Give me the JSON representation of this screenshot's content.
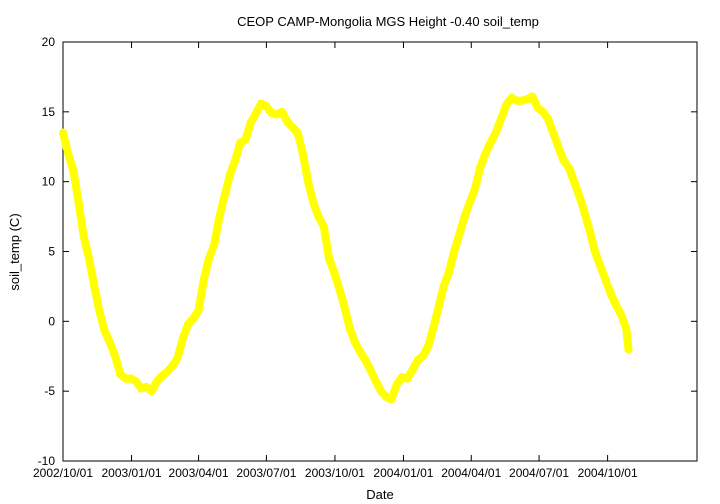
{
  "chart_data": {
    "type": "line",
    "title": "CEOP  CAMP-Mongolia MGS Height -0.40 soil_temp",
    "xlabel": "Date",
    "ylabel": "soil_temp (C)",
    "ylim": [
      -10,
      20
    ],
    "yticks": [
      -10,
      -5,
      0,
      5,
      10,
      15,
      20
    ],
    "xlim": [
      "2002-10-01",
      "2005-01-29"
    ],
    "xticks": [
      {
        "label": "2002/10/01",
        "date": "2002-10-01"
      },
      {
        "label": "2003/01/01",
        "date": "2003-01-01"
      },
      {
        "label": "2003/04/01",
        "date": "2003-04-01"
      },
      {
        "label": "2003/07/01",
        "date": "2003-07-01"
      },
      {
        "label": "2003/10/01",
        "date": "2003-10-01"
      },
      {
        "label": "2004/01/01",
        "date": "2004-01-01"
      },
      {
        "label": "2004/04/01",
        "date": "2004-04-01"
      },
      {
        "label": "2004/07/01",
        "date": "2004-07-01"
      },
      {
        "label": "2004/10/01",
        "date": "2004-10-01"
      }
    ],
    "grid": false,
    "legend": "none",
    "series": [
      {
        "name": "soil_temp",
        "color": "#ffff00",
        "points": [
          [
            "2002-10-01",
            13.5
          ],
          [
            "2002-10-08",
            12.0
          ],
          [
            "2002-10-15",
            10.8
          ],
          [
            "2002-10-22",
            8.5
          ],
          [
            "2002-10-29",
            6.0
          ],
          [
            "2002-11-05",
            4.5
          ],
          [
            "2002-11-12",
            2.5
          ],
          [
            "2002-11-19",
            0.7
          ],
          [
            "2002-11-26",
            -0.7
          ],
          [
            "2002-12-03",
            -1.5
          ],
          [
            "2002-12-10",
            -2.5
          ],
          [
            "2002-12-17",
            -3.8
          ],
          [
            "2002-12-24",
            -4.1
          ],
          [
            "2002-12-31",
            -4.1
          ],
          [
            "2003-01-07",
            -4.3
          ],
          [
            "2003-01-14",
            -4.8
          ],
          [
            "2003-01-21",
            -4.7
          ],
          [
            "2003-01-28",
            -5.0
          ],
          [
            "2003-02-04",
            -4.3
          ],
          [
            "2003-02-11",
            -3.9
          ],
          [
            "2003-02-18",
            -3.6
          ],
          [
            "2003-02-25",
            -3.2
          ],
          [
            "2003-03-04",
            -2.6
          ],
          [
            "2003-03-11",
            -1.2
          ],
          [
            "2003-03-18",
            -0.2
          ],
          [
            "2003-03-25",
            0.2
          ],
          [
            "2003-04-01",
            0.8
          ],
          [
            "2003-04-08",
            3.0
          ],
          [
            "2003-04-15",
            4.5
          ],
          [
            "2003-04-22",
            5.5
          ],
          [
            "2003-04-29",
            7.5
          ],
          [
            "2003-05-06",
            9.0
          ],
          [
            "2003-05-13",
            10.5
          ],
          [
            "2003-05-20",
            11.5
          ],
          [
            "2003-05-27",
            12.8
          ],
          [
            "2003-06-03",
            13.0
          ],
          [
            "2003-06-10",
            14.2
          ],
          [
            "2003-06-17",
            14.9
          ],
          [
            "2003-06-24",
            15.6
          ],
          [
            "2003-07-01",
            15.4
          ],
          [
            "2003-07-08",
            14.9
          ],
          [
            "2003-07-15",
            14.8
          ],
          [
            "2003-07-22",
            15.0
          ],
          [
            "2003-07-29",
            14.3
          ],
          [
            "2003-08-05",
            13.9
          ],
          [
            "2003-08-12",
            13.5
          ],
          [
            "2003-08-19",
            12.0
          ],
          [
            "2003-08-26",
            10.0
          ],
          [
            "2003-09-02",
            8.5
          ],
          [
            "2003-09-09",
            7.5
          ],
          [
            "2003-09-16",
            6.8
          ],
          [
            "2003-09-23",
            4.5
          ],
          [
            "2003-09-30",
            3.5
          ],
          [
            "2003-10-07",
            2.3
          ],
          [
            "2003-10-14",
            1.0
          ],
          [
            "2003-10-21",
            -0.5
          ],
          [
            "2003-10-28",
            -1.5
          ],
          [
            "2003-11-04",
            -2.2
          ],
          [
            "2003-11-11",
            -2.8
          ],
          [
            "2003-11-18",
            -3.5
          ],
          [
            "2003-11-25",
            -4.3
          ],
          [
            "2003-12-02",
            -5.0
          ],
          [
            "2003-12-09",
            -5.4
          ],
          [
            "2003-12-16",
            -5.6
          ],
          [
            "2003-12-23",
            -4.5
          ],
          [
            "2003-12-30",
            -4.0
          ],
          [
            "2004-01-06",
            -4.1
          ],
          [
            "2004-01-13",
            -3.5
          ],
          [
            "2004-01-20",
            -2.8
          ],
          [
            "2004-01-27",
            -2.5
          ],
          [
            "2004-02-03",
            -1.8
          ],
          [
            "2004-02-10",
            -0.5
          ],
          [
            "2004-02-17",
            1.0
          ],
          [
            "2004-02-24",
            2.5
          ],
          [
            "2004-03-02",
            3.5
          ],
          [
            "2004-03-09",
            5.0
          ],
          [
            "2004-03-16",
            6.2
          ],
          [
            "2004-03-23",
            7.5
          ],
          [
            "2004-03-30",
            8.5
          ],
          [
            "2004-04-06",
            9.5
          ],
          [
            "2004-04-13",
            11.0
          ],
          [
            "2004-04-20",
            12.0
          ],
          [
            "2004-04-27",
            12.8
          ],
          [
            "2004-05-04",
            13.5
          ],
          [
            "2004-05-11",
            14.5
          ],
          [
            "2004-05-18",
            15.5
          ],
          [
            "2004-05-25",
            16.0
          ],
          [
            "2004-06-01",
            15.8
          ],
          [
            "2004-06-08",
            15.8
          ],
          [
            "2004-06-15",
            15.9
          ],
          [
            "2004-06-22",
            16.1
          ],
          [
            "2004-06-29",
            15.3
          ],
          [
            "2004-07-06",
            15.0
          ],
          [
            "2004-07-13",
            14.5
          ],
          [
            "2004-07-20",
            13.5
          ],
          [
            "2004-07-27",
            12.5
          ],
          [
            "2004-08-03",
            11.5
          ],
          [
            "2004-08-10",
            11.0
          ],
          [
            "2004-08-17",
            10.0
          ],
          [
            "2004-08-24",
            9.0
          ],
          [
            "2004-08-31",
            7.8
          ],
          [
            "2004-09-07",
            6.5
          ],
          [
            "2004-09-14",
            5.0
          ],
          [
            "2004-09-21",
            4.0
          ],
          [
            "2004-09-28",
            3.0
          ],
          [
            "2004-10-05",
            2.0
          ],
          [
            "2004-10-12",
            1.2
          ],
          [
            "2004-10-19",
            0.5
          ],
          [
            "2004-10-26",
            -0.5
          ],
          [
            "2004-10-29",
            -2.0
          ]
        ]
      }
    ]
  }
}
